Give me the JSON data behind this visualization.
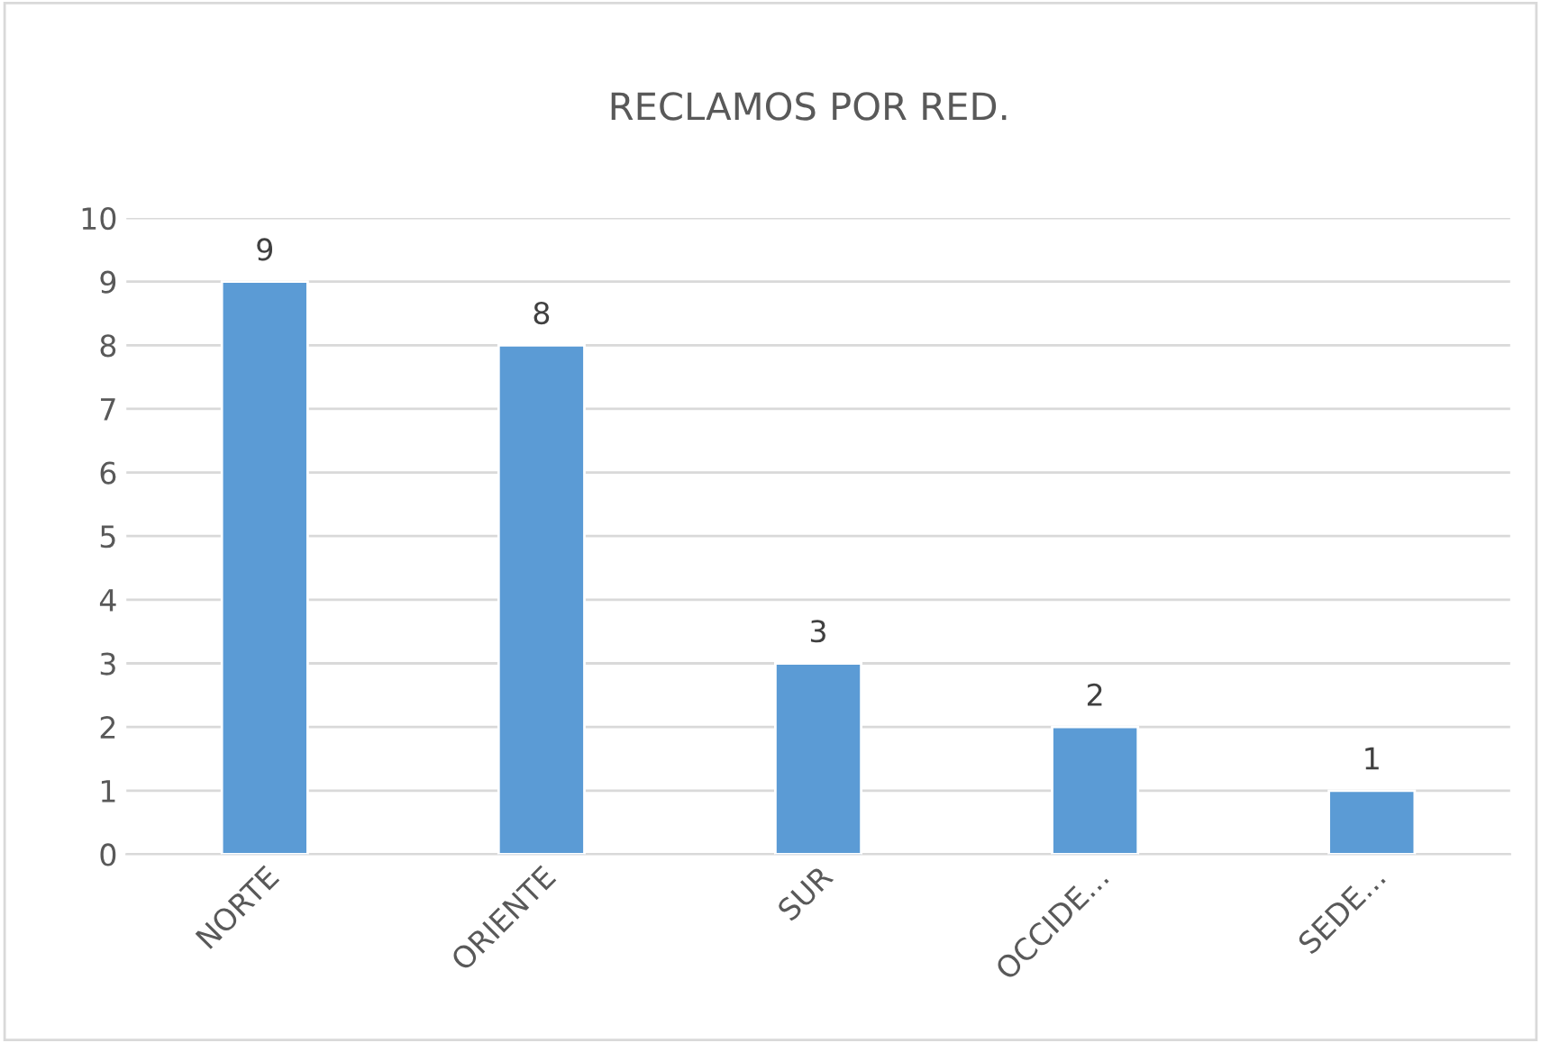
{
  "chart_data": {
    "type": "bar",
    "title": "RECLAMOS POR RED.",
    "categories": [
      "NORTE",
      "ORIENTE",
      "SUR",
      "OCCIDE...",
      "SEDE..."
    ],
    "values": [
      9,
      8,
      3,
      2,
      1
    ],
    "color": "#5b9bd5",
    "ylim": [
      0,
      10
    ],
    "yticks": [
      0,
      1,
      2,
      3,
      4,
      5,
      6,
      7,
      8,
      9,
      10
    ],
    "grid": "y",
    "data_labels": true
  }
}
